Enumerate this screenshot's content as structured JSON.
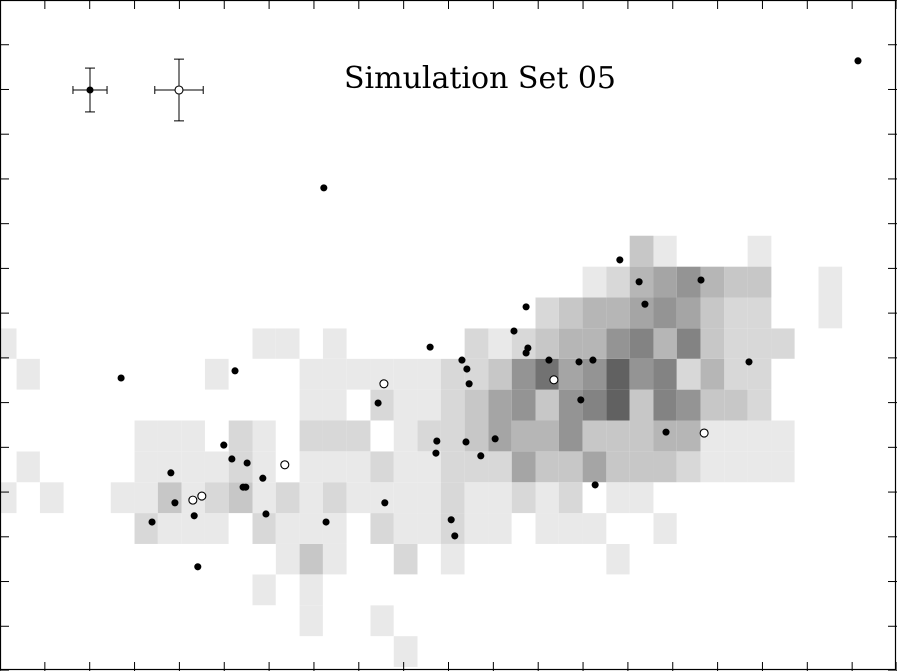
{
  "chart_data": {
    "type": "scatter",
    "title": "Simulation Set 05",
    "xlim": [
      0,
      20
    ],
    "ylim": [
      0,
      15
    ],
    "xticks": [
      0,
      1,
      2,
      3,
      4,
      5,
      6,
      7,
      8,
      9,
      10,
      11,
      12,
      13,
      14,
      15,
      16,
      17,
      18,
      19,
      20
    ],
    "yticks": [
      0,
      1,
      2,
      3,
      4,
      5,
      6,
      7,
      8,
      9,
      10,
      11,
      12,
      13,
      14,
      15
    ],
    "heatmap": {
      "xbins": [
        -0.16,
        0.37,
        0.89,
        1.42,
        1.94,
        2.47,
        3.0,
        3.52,
        4.05,
        4.57,
        5.1,
        5.63,
        6.15,
        6.68,
        7.2,
        7.73,
        8.26,
        8.78,
        9.31,
        9.83,
        10.36,
        10.89,
        11.41,
        11.94,
        12.46,
        12.99,
        13.52,
        14.04,
        14.57,
        15.09,
        15.62,
        16.15,
        16.67,
        17.2,
        17.72,
        18.25,
        18.78,
        19.3,
        19.83
      ],
      "ybins": [
        0.09,
        0.78,
        1.47,
        2.16,
        2.84,
        3.53,
        4.22,
        4.91,
        5.6,
        6.29,
        6.98,
        7.66,
        8.35,
        9.04,
        9.73
      ],
      "z": [
        [
          0,
          0,
          0,
          0,
          0,
          0,
          0,
          0,
          0,
          0,
          0,
          0,
          0,
          0,
          0,
          0,
          0,
          1,
          0,
          0,
          0,
          0,
          0,
          0,
          0,
          0,
          0,
          0,
          0,
          0,
          0,
          0,
          0,
          0,
          0,
          0,
          0,
          0
        ],
        [
          0,
          0,
          0,
          0,
          0,
          0,
          0,
          0,
          0,
          0,
          0,
          0,
          0,
          1,
          0,
          0,
          1,
          0,
          0,
          0,
          0,
          0,
          0,
          0,
          0,
          0,
          0,
          0,
          0,
          0,
          0,
          0,
          0,
          0,
          0,
          0,
          0,
          0
        ],
        [
          0,
          0,
          0,
          0,
          0,
          0,
          0,
          0,
          0,
          0,
          0,
          1,
          0,
          1,
          0,
          0,
          0,
          0,
          0,
          0,
          0,
          0,
          0,
          0,
          0,
          0,
          0,
          0,
          0,
          0,
          0,
          0,
          0,
          0,
          0,
          0,
          0,
          0
        ],
        [
          0,
          0,
          0,
          0,
          0,
          0,
          0,
          0,
          0,
          0,
          0,
          0,
          1,
          3,
          1,
          0,
          0,
          2,
          0,
          1,
          0,
          0,
          0,
          0,
          0,
          0,
          1,
          0,
          0,
          0,
          0,
          0,
          0,
          0,
          0,
          0,
          0,
          0
        ],
        [
          0,
          0,
          0,
          0,
          0,
          0,
          2,
          1,
          1,
          1,
          0,
          2,
          1,
          1,
          1,
          0,
          2,
          1,
          1,
          2,
          1,
          1,
          0,
          1,
          1,
          1,
          0,
          0,
          1,
          0,
          0,
          0,
          0,
          0,
          0,
          0,
          0,
          0
        ],
        [
          1,
          0,
          1,
          0,
          0,
          1,
          1,
          3,
          1,
          2,
          3,
          1,
          2,
          1,
          2,
          1,
          1,
          1,
          1,
          2,
          1,
          1,
          2,
          1,
          2,
          0,
          1,
          1,
          0,
          0,
          0,
          0,
          0,
          0,
          0,
          0,
          0,
          0
        ],
        [
          0,
          1,
          0,
          0,
          0,
          0,
          1,
          1,
          1,
          1,
          2,
          1,
          0,
          1,
          1,
          1,
          2,
          1,
          1,
          2,
          2,
          2,
          5,
          3,
          3,
          5,
          3,
          3,
          3,
          2,
          1,
          1,
          1,
          1,
          0,
          0,
          0,
          0
        ],
        [
          0,
          0,
          0,
          0,
          0,
          0,
          1,
          1,
          1,
          0,
          2,
          1,
          0,
          2,
          2,
          2,
          0,
          1,
          2,
          2,
          3,
          5,
          4,
          4,
          6,
          3,
          3,
          3,
          4,
          4,
          1,
          1,
          1,
          1,
          0,
          0,
          0,
          0
        ],
        [
          0,
          0,
          0,
          0,
          0,
          0,
          0,
          0,
          0,
          0,
          0,
          0,
          0,
          1,
          1,
          0,
          2,
          1,
          1,
          2,
          3,
          5,
          6,
          3,
          6,
          7,
          9,
          3,
          7,
          6,
          3,
          3,
          2,
          0,
          0,
          0,
          0,
          0
        ],
        [
          0,
          1,
          0,
          0,
          0,
          0,
          0,
          0,
          0,
          1,
          0,
          0,
          0,
          1,
          1,
          1,
          1,
          1,
          1,
          2,
          2,
          3,
          6,
          8,
          5,
          6,
          9,
          6,
          7,
          2,
          4,
          2,
          2,
          0,
          0,
          0,
          0,
          0
        ],
        [
          1,
          0,
          0,
          0,
          0,
          0,
          0,
          0,
          0,
          0,
          0,
          1,
          1,
          0,
          1,
          0,
          0,
          0,
          0,
          0,
          2,
          1,
          2,
          3,
          4,
          4,
          6,
          7,
          4,
          7,
          3,
          2,
          2,
          2,
          0,
          0,
          0,
          0
        ],
        [
          0,
          0,
          0,
          0,
          0,
          0,
          0,
          0,
          0,
          0,
          0,
          0,
          0,
          0,
          0,
          0,
          0,
          0,
          0,
          0,
          0,
          0,
          0,
          2,
          3,
          4,
          4,
          5,
          6,
          5,
          3,
          2,
          2,
          0,
          0,
          1,
          0,
          0
        ],
        [
          0,
          0,
          0,
          0,
          0,
          0,
          0,
          0,
          0,
          0,
          0,
          0,
          0,
          0,
          0,
          0,
          0,
          0,
          0,
          0,
          0,
          0,
          0,
          0,
          0,
          1,
          2,
          4,
          5,
          6,
          4,
          3,
          3,
          0,
          0,
          1,
          0,
          0
        ],
        [
          0,
          0,
          0,
          0,
          0,
          0,
          0,
          0,
          0,
          0,
          0,
          0,
          0,
          0,
          0,
          0,
          0,
          0,
          0,
          0,
          0,
          0,
          0,
          0,
          0,
          0,
          0,
          3,
          1,
          0,
          0,
          0,
          1,
          0,
          0,
          0,
          0,
          0
        ]
      ]
    },
    "series": [
      {
        "marker": "filled",
        "color": "#000000",
        "xerr": 0.38,
        "yerr": 0.49,
        "x": [
          19.13,
          7.22,
          13.82,
          14.25,
          15.63,
          14.38,
          11.73,
          11.46,
          9.59,
          11.77,
          11.73,
          10.3,
          12.24,
          13.22,
          12.91,
          10.41,
          16.7,
          2.7,
          5.24,
          10.46,
          8.43,
          12.95,
          14.85,
          9.74,
          11.04,
          10.39,
          4.99,
          9.72,
          10.72,
          5.17,
          5.51,
          5.86,
          3.81,
          5.48,
          5.42,
          13.27,
          3.9,
          8.58,
          5.93,
          4.33,
          3.39,
          7.27,
          10.06,
          10.14,
          4.41
        ],
        "values": [
          13.64,
          10.8,
          9.19,
          8.7,
          8.74,
          8.2,
          8.14,
          7.6,
          7.24,
          7.22,
          7.11,
          6.95,
          6.95,
          6.95,
          6.91,
          6.75,
          6.91,
          6.55,
          6.71,
          6.42,
          5.99,
          6.06,
          5.34,
          5.14,
          5.19,
          5.12,
          5.05,
          4.87,
          4.81,
          4.74,
          4.65,
          4.31,
          4.43,
          4.11,
          4.11,
          4.16,
          3.76,
          3.76,
          3.51,
          3.47,
          3.33,
          3.33,
          3.38,
          3.02,
          2.33
        ]
      },
      {
        "marker": "open",
        "color": "#000000",
        "xerr": 0.54,
        "yerr": 0.69,
        "x": [
          8.56,
          12.35,
          15.7,
          6.35,
          4.5,
          4.3
        ],
        "values": [
          6.42,
          6.51,
          5.32,
          4.61,
          3.91,
          3.82
        ]
      }
    ]
  }
}
